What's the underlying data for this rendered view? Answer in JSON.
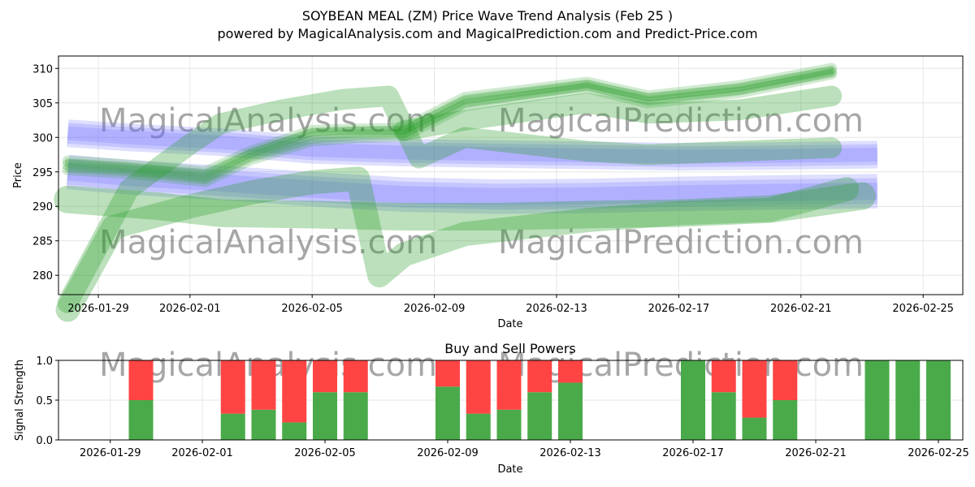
{
  "title": "SOYBEAN MEAL (ZM) Price Wave Trend Analysis (Feb 25 )",
  "subtitle": "powered by MagicalAnalysis.com and MagicalPrediction.com and Predict-Price.com",
  "watermarks": [
    "MagicalAnalysis.com",
    "MagicalPrediction.com",
    "MagicalAnalysis.com",
    "MagicalPrediction.com",
    "MagicalAnalysis.com",
    "MagicalPrediction.com"
  ],
  "colors": {
    "green": "#2ca02c",
    "blue": "#6b6bff",
    "buy": "#4aaa4a",
    "sell": "#ff4444"
  },
  "chart_data": [
    {
      "type": "area",
      "title": "",
      "xlabel": "Date",
      "ylabel": "Price",
      "ylim": [
        277.2,
        311.8
      ],
      "xlim": [
        "2026-01-27.6",
        "2026-02-26.05"
      ],
      "xticks": [
        "2026-01-29",
        "2026-02-01",
        "2026-02-05",
        "2026-02-09",
        "2026-02-13",
        "2026-02-17",
        "2026-02-21",
        "2026-02-25"
      ],
      "yticks": [
        280,
        285,
        290,
        295,
        300,
        305,
        310
      ],
      "grid": true,
      "blue_bands": [
        {
          "name": "upper",
          "x": [
            0,
            2,
            5,
            8,
            11,
            14,
            17,
            20,
            23,
            26.5
          ],
          "y": [
            300.6,
            300.0,
            299.3,
            298.2,
            297.8,
            297.6,
            297.4,
            297.2,
            297.3,
            297.5
          ],
          "width": 4.0
        },
        {
          "name": "lower",
          "x": [
            0,
            2,
            5,
            8,
            11,
            14,
            17,
            20,
            23,
            26.5
          ],
          "y": [
            295.0,
            294.2,
            293.4,
            292.5,
            291.7,
            291.4,
            291.5,
            291.8,
            292.0,
            292.2
          ],
          "width": 5.0
        }
      ],
      "green_bands": [
        {
          "name": "wave-1",
          "x": [
            0,
            2,
            4.5,
            6,
            8,
            9.5,
            11,
            13,
            17,
            19,
            22,
            25
          ],
          "y": [
            296.0,
            295.5,
            294.3,
            297.5,
            300.5,
            300.8,
            300.8,
            305.2,
            307.5,
            305.6,
            307.0,
            309.5
          ],
          "width": 1.6
        },
        {
          "name": "wave-2",
          "x": [
            0,
            2,
            4.5,
            6,
            8,
            9.5,
            11,
            13,
            17,
            19,
            22,
            25
          ],
          "y": [
            295.3,
            294.8,
            293.6,
            296.8,
            299.5,
            300.0,
            300.2,
            304.6,
            307.2,
            305.0,
            306.5,
            309.2
          ],
          "width": 1.6
        },
        {
          "name": "wave-3",
          "x": [
            0,
            2,
            4.5,
            6,
            8,
            9.5,
            11,
            13,
            17,
            19,
            22,
            25
          ],
          "y": [
            296.6,
            296.0,
            295.0,
            298.0,
            301.0,
            301.2,
            301.3,
            305.8,
            308.0,
            306.0,
            307.5,
            310.0
          ],
          "width": 1.6
        },
        {
          "name": "wave-4",
          "x": [
            0,
            2,
            4,
            5,
            7,
            9,
            10.5,
            11.5,
            13,
            17,
            19,
            22,
            25
          ],
          "y": [
            276.0,
            292.5,
            299.0,
            302.0,
            304.0,
            305.5,
            306.0,
            297.0,
            300.0,
            298.0,
            297.5,
            298.0,
            298.5
          ],
          "width": 3.0
        },
        {
          "name": "wave-5",
          "x": [
            0,
            1.5,
            4,
            6,
            8,
            9.5,
            10.2,
            11,
            13,
            17,
            20,
            23,
            25.5
          ],
          "y": [
            275.0,
            287.0,
            290.0,
            292.0,
            293.5,
            294.0,
            280.0,
            283.0,
            286.0,
            288.0,
            289.0,
            289.5,
            292.5
          ],
          "width": 3.5
        },
        {
          "name": "wave-6",
          "x": [
            0,
            3,
            5,
            8,
            11,
            14,
            17,
            20,
            23,
            26
          ],
          "y": [
            291.0,
            290.0,
            289.0,
            288.8,
            288.5,
            288.5,
            288.8,
            289.0,
            289.6,
            291.5
          ],
          "width": 4.0
        },
        {
          "name": "wave-7",
          "x": [
            11,
            13,
            17,
            19,
            22,
            25
          ],
          "y": [
            301.0,
            302.5,
            305.0,
            303.5,
            304.0,
            306.0
          ],
          "width": 3.0
        }
      ]
    },
    {
      "type": "bar",
      "title": "Buy and Sell Powers",
      "xlabel": "Date",
      "ylabel": "Signal Strength",
      "ylim": [
        0,
        1.0
      ],
      "yticks": [
        "0.0",
        "0.5",
        "1.0"
      ],
      "xticks": [
        "2026-01-29",
        "2026-02-01",
        "2026-02-05",
        "2026-02-09",
        "2026-02-13",
        "2026-02-17",
        "2026-02-21",
        "2026-02-25"
      ],
      "grid": true,
      "series": [
        {
          "name": "Buy",
          "color": "#4aaa4a"
        },
        {
          "name": "Sell",
          "color": "#ff4444"
        }
      ],
      "bars": [
        {
          "date": "2026-01-30",
          "buy": 0.5
        },
        {
          "date": "2026-02-02",
          "buy": 0.33
        },
        {
          "date": "2026-02-03",
          "buy": 0.38
        },
        {
          "date": "2026-02-04",
          "buy": 0.22
        },
        {
          "date": "2026-02-05",
          "buy": 0.6
        },
        {
          "date": "2026-02-06",
          "buy": 0.6
        },
        {
          "date": "2026-02-09",
          "buy": 0.67
        },
        {
          "date": "2026-02-10",
          "buy": 0.33
        },
        {
          "date": "2026-02-11",
          "buy": 0.38
        },
        {
          "date": "2026-02-12",
          "buy": 0.6
        },
        {
          "date": "2026-02-13",
          "buy": 0.72
        },
        {
          "date": "2026-02-17",
          "buy": 1.0
        },
        {
          "date": "2026-02-18",
          "buy": 0.6
        },
        {
          "date": "2026-02-19",
          "buy": 0.28
        },
        {
          "date": "2026-02-20",
          "buy": 0.5
        },
        {
          "date": "2026-02-23",
          "buy": 1.0
        },
        {
          "date": "2026-02-24",
          "buy": 1.0
        },
        {
          "date": "2026-02-25",
          "buy": 1.0
        }
      ]
    }
  ]
}
